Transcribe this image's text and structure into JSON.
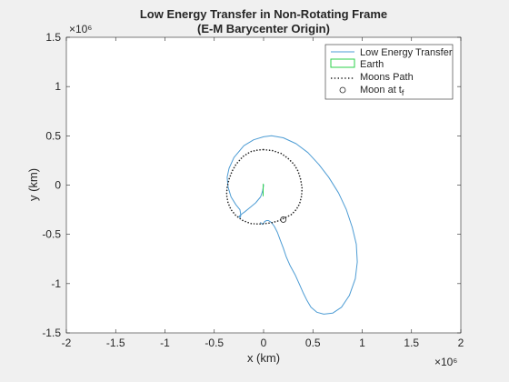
{
  "chart_data": {
    "type": "line",
    "title": "Low Energy Transfer in Non-Rotating Frame",
    "subtitle": "(E-M Barycenter Origin)",
    "xlabel": "x (km)",
    "ylabel": "y (km)",
    "x_exponent_label": "×10⁶",
    "y_exponent_label": "×10⁶",
    "xlim": [
      -2000000,
      2000000
    ],
    "ylim": [
      -1500000,
      1500000
    ],
    "x_ticks": [
      -2000000,
      -1500000,
      -1000000,
      -500000,
      0,
      500000,
      1000000,
      1500000,
      2000000
    ],
    "x_tick_labels": [
      "-2",
      "-1.5",
      "-1",
      "-0.5",
      "0",
      "0.5",
      "1",
      "1.5",
      "2"
    ],
    "y_ticks": [
      -1500000,
      -1000000,
      -500000,
      0,
      500000,
      1000000,
      1500000
    ],
    "y_tick_labels": [
      "-1.5",
      "-1",
      "-0.5",
      "0",
      "0.5",
      "1",
      "1.5"
    ],
    "grid": false,
    "legend_position": "top-right",
    "series": [
      {
        "name": "Low Energy Transfer",
        "color": "#4d9cd4",
        "style": "solid",
        "x": [
          0,
          -10000,
          -30000,
          -80000,
          -140000,
          -190000,
          -230000,
          -250000,
          -240000,
          -230000,
          -240000,
          -280000,
          -330000,
          -360000,
          -370000,
          -350000,
          -300000,
          -200000,
          -100000,
          0,
          80000,
          200000,
          330000,
          450000,
          560000,
          660000,
          760000,
          840000,
          900000,
          940000,
          950000,
          930000,
          870000,
          790000,
          700000,
          610000,
          540000,
          480000,
          440000,
          400000,
          360000,
          320000,
          270000,
          230000,
          200000,
          170000,
          140000,
          110000,
          80000,
          50000,
          30000,
          10000,
          0,
          -10000,
          -20000,
          -30000
        ],
        "y": [
          0,
          -60000,
          -120000,
          -180000,
          -230000,
          -270000,
          -300000,
          -320000,
          -330000,
          -310000,
          -250000,
          -200000,
          -120000,
          -20000,
          80000,
          170000,
          280000,
          400000,
          460000,
          490000,
          500000,
          480000,
          420000,
          330000,
          210000,
          80000,
          -80000,
          -250000,
          -430000,
          -600000,
          -780000,
          -950000,
          -1120000,
          -1240000,
          -1300000,
          -1310000,
          -1290000,
          -1240000,
          -1170000,
          -1090000,
          -1000000,
          -910000,
          -820000,
          -730000,
          -640000,
          -560000,
          -480000,
          -420000,
          -380000,
          -360000,
          -360000,
          -370000,
          -390000,
          -400000,
          -390000,
          -380000
        ]
      },
      {
        "name": "Earth",
        "color": "#2bd14a",
        "style": "solid",
        "x": [
          -5000,
          -5000,
          -4000,
          -3000
        ],
        "y": [
          -110000,
          -60000,
          0,
          10000
        ]
      },
      {
        "name": "Moons Path",
        "color": "#262626",
        "style": "dotted",
        "x": [
          0,
          90000,
          180000,
          250000,
          310000,
          350000,
          375000,
          390000,
          385000,
          365000,
          330000,
          280000,
          220000,
          160000,
          90000,
          20000,
          -50000,
          -130000,
          -210000,
          -280000,
          -330000,
          -360000,
          -375000,
          -370000,
          -350000,
          -320000,
          -280000,
          -210000,
          -130000,
          -60000,
          0
        ],
        "y": [
          360000,
          350000,
          320000,
          270000,
          210000,
          140000,
          60000,
          -30000,
          -110000,
          -190000,
          -250000,
          -300000,
          -330000,
          -360000,
          -380000,
          -390000,
          -395000,
          -390000,
          -360000,
          -310000,
          -250000,
          -180000,
          -100000,
          -20000,
          60000,
          140000,
          210000,
          290000,
          340000,
          355000,
          360000
        ]
      }
    ],
    "points": [
      {
        "name": "Moon at t",
        "name_subscript": "f",
        "x": 200000,
        "y": -350000,
        "marker": "circle-open",
        "color": "#262626"
      }
    ]
  }
}
